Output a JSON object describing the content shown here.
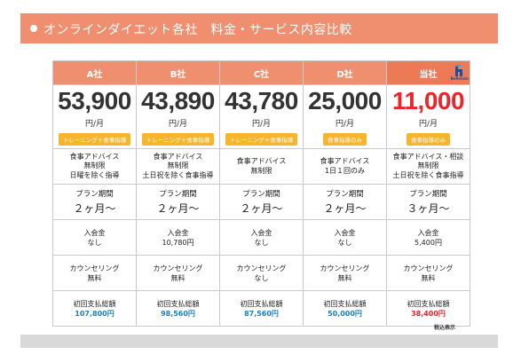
{
  "title": "オンラインダイエット各社　料金・サービス内容比較",
  "companies": [
    {
      "name": "A社",
      "price": "53,900",
      "unit": "円/月",
      "badge": "トレーニング＋食事指導",
      "advice": [
        "食事アドバイス",
        "無制限",
        "日曜を除く指導"
      ],
      "period_label": "プラン期間",
      "period": "２ヶ月〜",
      "fee_label": "入会金",
      "fee": "なし",
      "counsel_label": "カウンセリング",
      "counsel": "無料",
      "total_label": "初回支払総額",
      "total": "107,800円"
    },
    {
      "name": "B社",
      "price": "43,890",
      "unit": "円/月",
      "badge": "トレーニング＋食事指導",
      "advice": [
        "食事アドバイス",
        "無制限",
        "土日祝を除く食事指導"
      ],
      "period_label": "プラン期間",
      "period": "２ヶ月〜",
      "fee_label": "入会金",
      "fee": "10,780円",
      "counsel_label": "カウンセリング",
      "counsel": "無料",
      "total_label": "初回支払総額",
      "total": "98,560円"
    },
    {
      "name": "C社",
      "price": "43,780",
      "unit": "円/月",
      "badge": "トレーニング＋食事指導",
      "advice": [
        "食事アドバイス",
        "無制限"
      ],
      "period_label": "プラン期間",
      "period": "２ヶ月〜",
      "fee_label": "入会金",
      "fee": "なし",
      "counsel_label": "カウンセリング",
      "counsel": "なし",
      "total_label": "初回支払総額",
      "total": "87,560円"
    },
    {
      "name": "D社",
      "price": "25,000",
      "unit": "円/月",
      "badge": "食事指導のみ",
      "advice": [
        "食事アドバイス",
        "1日１回のみ"
      ],
      "period_label": "プラン期間",
      "period": "２ヶ月〜",
      "fee_label": "入会金",
      "fee": "なし",
      "counsel_label": "カウンセリング",
      "counsel": "無料",
      "total_label": "初回支払総額",
      "total": "50,000円"
    },
    {
      "name": "当社",
      "price": "11,000",
      "unit": "円/月",
      "badge": "食事指導のみ",
      "advice": [
        "食事アドバイス・相談",
        "無制限",
        "土日祝を除く食事指導"
      ],
      "period_label": "プラン期間",
      "period": "３ヶ月〜",
      "fee_label": "入会金",
      "fee": "5,400円",
      "counsel_label": "カウンセリング",
      "counsel": "無料",
      "total_label": "初回支払総額",
      "total": "38,400円",
      "logo_text": "BeRetain"
    }
  ],
  "note": "税込表示",
  "colors": {
    "header": "#f08f6f",
    "badge": "#f7b52b",
    "total_blue": "#1a7fc4",
    "highlight_red": "#e8262b"
  }
}
